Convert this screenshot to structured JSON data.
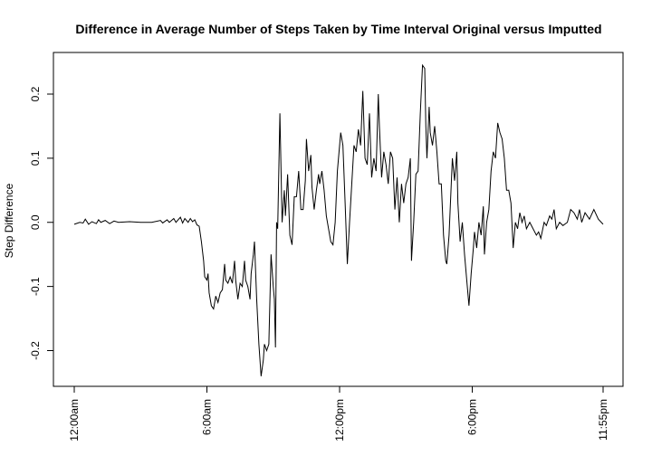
{
  "chart_data": {
    "type": "line",
    "title": "Difference in Average Number of Steps Taken by Time Interval Original versus Imputted",
    "xlabel": "",
    "ylabel": "Step Difference",
    "x_unit": "hour of day",
    "xlim": [
      0,
      23.9167
    ],
    "ylim": [
      -0.22,
      0.25
    ],
    "x_ticks": [
      {
        "value": 0,
        "label": "12:00am"
      },
      {
        "value": 6,
        "label": "6:00am"
      },
      {
        "value": 12,
        "label": "12:00pm"
      },
      {
        "value": 18,
        "label": "6:00pm"
      },
      {
        "value": 23.9167,
        "label": "11:55pm"
      }
    ],
    "y_ticks": [
      {
        "value": -0.2,
        "label": "-0.2"
      },
      {
        "value": -0.1,
        "label": "-0.1"
      },
      {
        "value": 0.0,
        "label": "0.0"
      },
      {
        "value": 0.1,
        "label": "0.1"
      },
      {
        "value": 0.2,
        "label": "0.2"
      }
    ],
    "grid": false,
    "series": [
      {
        "color": "#000000",
        "points": [
          [
            0.0,
            -0.003
          ],
          [
            0.25,
            0.0
          ],
          [
            0.4,
            -0.001
          ],
          [
            0.5,
            0.005
          ],
          [
            0.65,
            -0.003
          ],
          [
            0.8,
            0.001
          ],
          [
            1.0,
            -0.002
          ],
          [
            1.1,
            0.004
          ],
          [
            1.2,
            0.0
          ],
          [
            1.4,
            0.003
          ],
          [
            1.6,
            -0.002
          ],
          [
            1.8,
            0.002
          ],
          [
            2.0,
            0.0
          ],
          [
            2.5,
            0.001
          ],
          [
            3.0,
            0.0
          ],
          [
            3.5,
            0.0
          ],
          [
            3.9,
            0.003
          ],
          [
            4.0,
            -0.001
          ],
          [
            4.2,
            0.004
          ],
          [
            4.3,
            0.0
          ],
          [
            4.5,
            0.006
          ],
          [
            4.6,
            0.0
          ],
          [
            4.8,
            0.008
          ],
          [
            4.9,
            -0.001
          ],
          [
            5.0,
            0.006
          ],
          [
            5.15,
            0.0
          ],
          [
            5.25,
            0.006
          ],
          [
            5.35,
            0.001
          ],
          [
            5.45,
            0.004
          ],
          [
            5.55,
            -0.004
          ],
          [
            5.65,
            -0.006
          ],
          [
            5.75,
            -0.03
          ],
          [
            5.85,
            -0.06
          ],
          [
            5.9,
            -0.085
          ],
          [
            6.0,
            -0.09
          ],
          [
            6.05,
            -0.08
          ],
          [
            6.1,
            -0.11
          ],
          [
            6.2,
            -0.13
          ],
          [
            6.3,
            -0.135
          ],
          [
            6.4,
            -0.115
          ],
          [
            6.5,
            -0.125
          ],
          [
            6.6,
            -0.11
          ],
          [
            6.7,
            -0.105
          ],
          [
            6.8,
            -0.065
          ],
          [
            6.85,
            -0.09
          ],
          [
            6.95,
            -0.095
          ],
          [
            7.05,
            -0.085
          ],
          [
            7.15,
            -0.095
          ],
          [
            7.25,
            -0.06
          ],
          [
            7.3,
            -0.09
          ],
          [
            7.4,
            -0.12
          ],
          [
            7.5,
            -0.095
          ],
          [
            7.6,
            -0.1
          ],
          [
            7.7,
            -0.06
          ],
          [
            7.75,
            -0.09
          ],
          [
            7.85,
            -0.1
          ],
          [
            7.95,
            -0.12
          ],
          [
            8.0,
            -0.08
          ],
          [
            8.1,
            -0.05
          ],
          [
            8.15,
            -0.03
          ],
          [
            8.25,
            -0.12
          ],
          [
            8.35,
            -0.19
          ],
          [
            8.45,
            -0.24
          ],
          [
            8.55,
            -0.215
          ],
          [
            8.6,
            -0.19
          ],
          [
            8.7,
            -0.2
          ],
          [
            8.8,
            -0.19
          ],
          [
            8.9,
            -0.05
          ],
          [
            9.0,
            -0.1
          ],
          [
            9.05,
            -0.12
          ],
          [
            9.1,
            -0.195
          ],
          [
            9.15,
            0.0
          ],
          [
            9.2,
            -0.01
          ],
          [
            9.3,
            0.17
          ],
          [
            9.4,
            0.0
          ],
          [
            9.5,
            0.05
          ],
          [
            9.55,
            0.01
          ],
          [
            9.65,
            0.075
          ],
          [
            9.75,
            -0.02
          ],
          [
            9.85,
            -0.035
          ],
          [
            9.95,
            0.04
          ],
          [
            10.05,
            0.04
          ],
          [
            10.15,
            0.08
          ],
          [
            10.25,
            0.02
          ],
          [
            10.35,
            0.02
          ],
          [
            10.45,
            0.065
          ],
          [
            10.5,
            0.13
          ],
          [
            10.6,
            0.08
          ],
          [
            10.7,
            0.105
          ],
          [
            10.75,
            0.055
          ],
          [
            10.85,
            0.02
          ],
          [
            10.95,
            0.05
          ],
          [
            11.05,
            0.075
          ],
          [
            11.1,
            0.06
          ],
          [
            11.2,
            0.08
          ],
          [
            11.3,
            0.05
          ],
          [
            11.4,
            0.01
          ],
          [
            11.5,
            -0.01
          ],
          [
            11.6,
            -0.03
          ],
          [
            11.7,
            -0.035
          ],
          [
            11.8,
            0.0
          ],
          [
            11.9,
            0.08
          ],
          [
            12.05,
            0.14
          ],
          [
            12.15,
            0.12
          ],
          [
            12.25,
            0.03
          ],
          [
            12.35,
            -0.065
          ],
          [
            12.45,
            0.0
          ],
          [
            12.55,
            0.06
          ],
          [
            12.65,
            0.12
          ],
          [
            12.75,
            0.11
          ],
          [
            12.85,
            0.145
          ],
          [
            12.95,
            0.12
          ],
          [
            13.05,
            0.205
          ],
          [
            13.15,
            0.1
          ],
          [
            13.25,
            0.09
          ],
          [
            13.35,
            0.17
          ],
          [
            13.45,
            0.07
          ],
          [
            13.55,
            0.1
          ],
          [
            13.65,
            0.08
          ],
          [
            13.75,
            0.2
          ],
          [
            13.8,
            0.15
          ],
          [
            13.9,
            0.07
          ],
          [
            14.0,
            0.11
          ],
          [
            14.1,
            0.09
          ],
          [
            14.2,
            0.06
          ],
          [
            14.3,
            0.11
          ],
          [
            14.4,
            0.1
          ],
          [
            14.5,
            0.02
          ],
          [
            14.6,
            0.07
          ],
          [
            14.7,
            0.0
          ],
          [
            14.8,
            0.06
          ],
          [
            14.9,
            0.03
          ],
          [
            15.0,
            0.06
          ],
          [
            15.1,
            0.07
          ],
          [
            15.2,
            0.1
          ],
          [
            15.25,
            -0.06
          ],
          [
            15.35,
            0.0
          ],
          [
            15.45,
            0.075
          ],
          [
            15.55,
            0.08
          ],
          [
            15.65,
            0.17
          ],
          [
            15.75,
            0.245
          ],
          [
            15.85,
            0.24
          ],
          [
            15.9,
            0.15
          ],
          [
            15.95,
            0.1
          ],
          [
            16.05,
            0.18
          ],
          [
            16.1,
            0.14
          ],
          [
            16.2,
            0.12
          ],
          [
            16.3,
            0.15
          ],
          [
            16.4,
            0.11
          ],
          [
            16.5,
            0.06
          ],
          [
            16.6,
            0.06
          ],
          [
            16.7,
            -0.02
          ],
          [
            16.8,
            -0.06
          ],
          [
            16.85,
            -0.065
          ],
          [
            16.95,
            -0.02
          ],
          [
            17.05,
            0.06
          ],
          [
            17.1,
            0.1
          ],
          [
            17.2,
            0.065
          ],
          [
            17.3,
            0.11
          ],
          [
            17.35,
            0.03
          ],
          [
            17.45,
            -0.03
          ],
          [
            17.55,
            0.0
          ],
          [
            17.65,
            -0.05
          ],
          [
            17.75,
            -0.09
          ],
          [
            17.85,
            -0.13
          ],
          [
            17.95,
            -0.08
          ],
          [
            18.05,
            -0.04
          ],
          [
            18.1,
            -0.015
          ],
          [
            18.2,
            -0.04
          ],
          [
            18.3,
            0.0
          ],
          [
            18.4,
            -0.02
          ],
          [
            18.5,
            0.025
          ],
          [
            18.55,
            -0.05
          ],
          [
            18.65,
            0.0
          ],
          [
            18.75,
            0.02
          ],
          [
            18.85,
            0.08
          ],
          [
            18.95,
            0.11
          ],
          [
            19.05,
            0.1
          ],
          [
            19.15,
            0.155
          ],
          [
            19.25,
            0.14
          ],
          [
            19.35,
            0.13
          ],
          [
            19.45,
            0.1
          ],
          [
            19.55,
            0.05
          ],
          [
            19.65,
            0.05
          ],
          [
            19.75,
            0.03
          ],
          [
            19.85,
            -0.04
          ],
          [
            19.95,
            0.0
          ],
          [
            20.05,
            -0.01
          ],
          [
            20.15,
            0.015
          ],
          [
            20.25,
            0.0
          ],
          [
            20.35,
            0.01
          ],
          [
            20.45,
            -0.01
          ],
          [
            20.6,
            0.0
          ],
          [
            20.75,
            -0.01
          ],
          [
            20.9,
            -0.02
          ],
          [
            21.0,
            -0.015
          ],
          [
            21.1,
            -0.025
          ],
          [
            21.25,
            0.0
          ],
          [
            21.35,
            -0.005
          ],
          [
            21.5,
            0.01
          ],
          [
            21.6,
            0.005
          ],
          [
            21.7,
            0.02
          ],
          [
            21.8,
            -0.01
          ],
          [
            21.95,
            0.0
          ],
          [
            22.1,
            -0.005
          ],
          [
            22.3,
            0.0
          ],
          [
            22.45,
            0.02
          ],
          [
            22.6,
            0.015
          ],
          [
            22.75,
            0.005
          ],
          [
            22.85,
            0.02
          ],
          [
            22.95,
            0.0
          ],
          [
            23.1,
            0.015
          ],
          [
            23.3,
            0.005
          ],
          [
            23.5,
            0.02
          ],
          [
            23.7,
            0.005
          ],
          [
            23.9167,
            -0.003
          ]
        ]
      }
    ]
  }
}
